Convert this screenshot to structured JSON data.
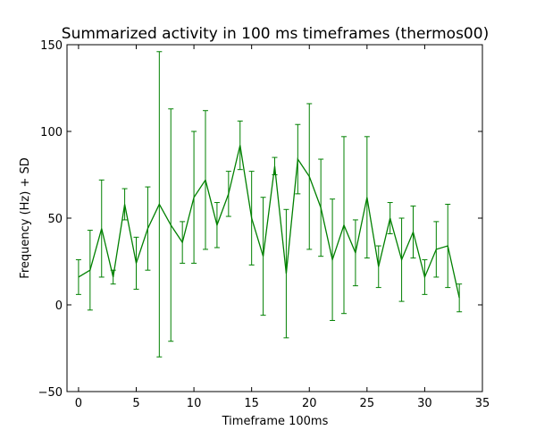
{
  "chart_data": {
    "type": "line",
    "title": "Summarized activity in 100 ms timeframes (thermos00)",
    "xlabel": "Timeframe 100ms",
    "ylabel": "Frequency (Hz) + SD",
    "xlim": [
      -1,
      35
    ],
    "ylim": [
      -50,
      150
    ],
    "x_ticks": [
      0,
      5,
      10,
      15,
      20,
      25,
      30,
      35
    ],
    "x_tick_labels": [
      "0",
      "5",
      "10",
      "15",
      "20",
      "25",
      "30",
      "35"
    ],
    "y_ticks": [
      -50,
      0,
      50,
      100,
      150
    ],
    "y_tick_labels": [
      "−50",
      "0",
      "50",
      "100",
      "150"
    ],
    "grid": false,
    "legend": "none",
    "series": [
      {
        "name": "thermos00",
        "color": "#008000",
        "x": [
          0,
          1,
          2,
          3,
          4,
          5,
          6,
          7,
          8,
          9,
          10,
          11,
          12,
          13,
          14,
          15,
          16,
          17,
          18,
          19,
          20,
          21,
          22,
          23,
          24,
          25,
          26,
          27,
          28,
          29,
          30,
          31,
          32,
          33
        ],
        "y": [
          16,
          20,
          44,
          16,
          58,
          24,
          44,
          58,
          46,
          36,
          62,
          72,
          46,
          64,
          92,
          50,
          28,
          80,
          18,
          84,
          74,
          56,
          26,
          46,
          30,
          62,
          22,
          50,
          26,
          42,
          16,
          32,
          34,
          4
        ],
        "sd": [
          10,
          23,
          28,
          4,
          9,
          15,
          24,
          88,
          67,
          12,
          38,
          40,
          13,
          13,
          14,
          27,
          34,
          5,
          37,
          20,
          42,
          28,
          35,
          51,
          19,
          35,
          12,
          9,
          24,
          15,
          10,
          16,
          24,
          8
        ]
      }
    ]
  }
}
